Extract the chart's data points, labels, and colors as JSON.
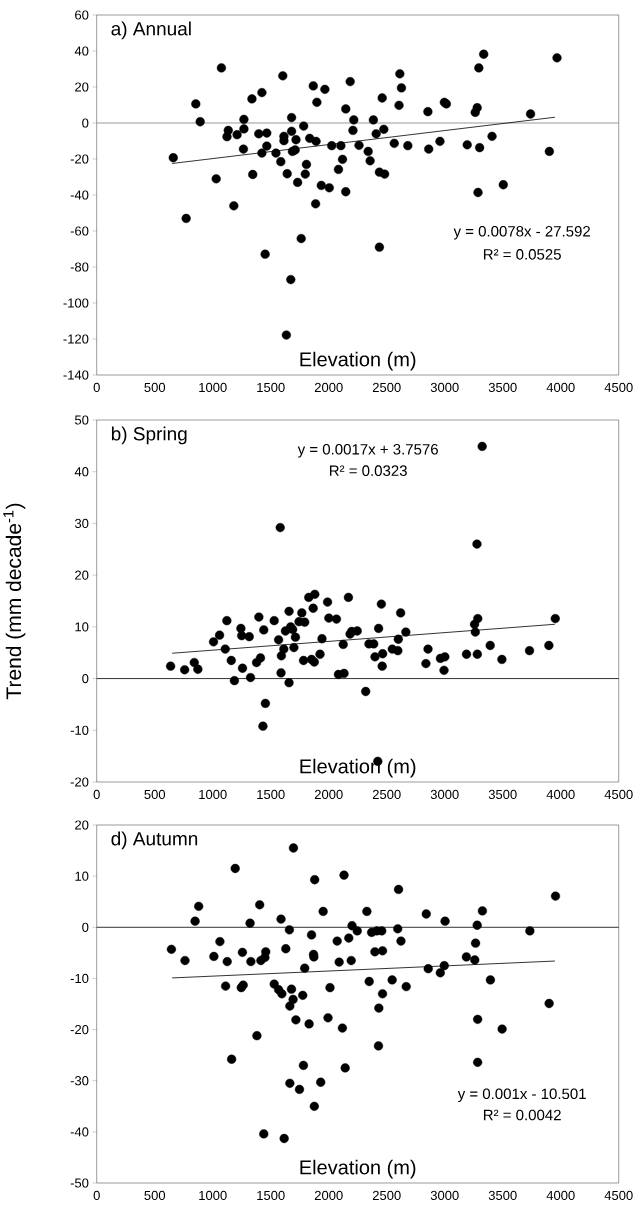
{
  "chart_data": [
    {
      "type": "scatter",
      "title": "a) Annual",
      "xlabel": "Elevation (m)",
      "marker": "circle",
      "xlim": [
        0,
        4500
      ],
      "ylim": [
        -140,
        60
      ],
      "xticks": [
        0,
        500,
        1000,
        1500,
        2000,
        2500,
        3000,
        3500,
        4000,
        4500
      ],
      "yticks": [
        -140,
        -120,
        -100,
        -80,
        -60,
        -40,
        -20,
        0,
        20,
        40,
        60
      ],
      "annotations": [
        "y = 0.0078x - 27.592",
        "R² = 0.0525"
      ],
      "ref_lines": [
        {
          "axis": "y",
          "value": 0,
          "color": "#808080"
        }
      ],
      "series": [
        {
          "color": "#000000",
          "x": [
            660,
            771,
            854,
            892,
            1030,
            1075,
            1134,
            1123,
            1182,
            1210,
            1265,
            1269,
            1269,
            1338,
            1345,
            1397,
            1424,
            1424,
            1452,
            1466,
            1466,
            1545,
            1587,
            1604,
            1614,
            1614,
            1635,
            1642,
            1673,
            1680,
            1680,
            1687,
            1711,
            1718,
            1732,
            1763,
            1784,
            1798,
            1808,
            1836,
            1867,
            1887,
            1891,
            1898,
            1936,
            1967,
            2005,
            2026,
            2084,
            2105,
            2119,
            2147,
            2147,
            2185,
            2209,
            2216,
            2261,
            2340,
            2357,
            2385,
            2409,
            2437,
            2437,
            2461,
            2475,
            2482,
            2565,
            2606,
            2613,
            2627,
            2682,
            2855,
            2862,
            2959,
            2997,
            3014,
            3194,
            3263,
            3280,
            3287,
            3294,
            3301,
            3336,
            3408,
            3505,
            3740,
            3902,
            3968
          ],
          "values": [
            -19.3,
            -53,
            10.6,
            0.7,
            -31,
            30.6,
            -4.1,
            -7.6,
            -46,
            -6.5,
            -14.5,
            2,
            -3.3,
            13.4,
            -28.6,
            -6,
            16.9,
            -16.7,
            -72.9,
            -5.6,
            -12.8,
            -16.7,
            -21.5,
            26.2,
            -7.4,
            -9.8,
            -117.8,
            -28.2,
            -87,
            3,
            -4.6,
            -15.8,
            -15,
            -9.3,
            -33,
            -64.2,
            -1.7,
            -28.4,
            -23,
            -8.5,
            20.6,
            -44.9,
            -10.2,
            11.5,
            -34.7,
            18.7,
            -36,
            -12.6,
            -25.8,
            -12.6,
            -20.2,
            -38.2,
            7.8,
            23,
            -4.1,
            1.7,
            -12.4,
            -15.8,
            -21,
            1.7,
            -6,
            -27.3,
            -69,
            13.9,
            -3.5,
            -28.4,
            -11.3,
            9.8,
            27.3,
            19.5,
            -12.6,
            6.3,
            -14.5,
            -10.2,
            11.5,
            10.6,
            -12.1,
            5.9,
            8.5,
            -38.6,
            30.6,
            -13.7,
            38.2,
            -7.4,
            -34.3,
            5,
            -15.8,
            36.2
          ]
        },
        {
          "type": "line",
          "marker": "none",
          "color": "#000000",
          "x": [
            650,
            3950
          ],
          "values": [
            -22.5,
            3.2
          ]
        }
      ]
    },
    {
      "type": "scatter",
      "title": "b) Spring",
      "xlabel": "Elevation (m)",
      "ylabel": "Trend (mm decade$^{-1}$)",
      "marker": "circle",
      "xlim": [
        0,
        4500
      ],
      "ylim": [
        -20,
        50
      ],
      "xticks": [
        0,
        500,
        1000,
        1500,
        2000,
        2500,
        3000,
        3500,
        4000,
        4500
      ],
      "yticks": [
        -20,
        -10,
        0,
        10,
        20,
        30,
        40,
        50
      ],
      "annotations": [
        "y = 0.0017x + 3.7576",
        "R² = 0.0323"
      ],
      "ref_lines": [
        {
          "axis": "y",
          "value": 0,
          "color": "#000000"
        }
      ],
      "series": [
        {
          "color": "#000000",
          "x": [
            637,
            758,
            841,
            872,
            1007,
            1059,
            1108,
            1122,
            1160,
            1187,
            1243,
            1250,
            1257,
            1315,
            1326,
            1378,
            1398,
            1412,
            1440,
            1433,
            1454,
            1530,
            1568,
            1582,
            1589,
            1592,
            1613,
            1627,
            1658,
            1658,
            1672,
            1689,
            1700,
            1713,
            1744,
            1768,
            1783,
            1793,
            1828,
            1852,
            1866,
            1876,
            1880,
            1942,
            1925,
            1990,
            2001,
            2067,
            2084,
            2132,
            2125,
            2170,
            2184,
            2198,
            2246,
            2319,
            2347,
            2388,
            2399,
            2423,
            2430,
            2454,
            2461,
            2465,
            2548,
            2596,
            2600,
            2620,
            2665,
            2838,
            2856,
            2963,
            2994,
            3001,
            3188,
            3257,
            3264,
            3278,
            3281,
            3285,
            3323,
            3392,
            3493,
            3731,
            3898,
            3953
          ],
          "values": [
            2.4,
            1.7,
            3.1,
            1.8,
            7.1,
            8.4,
            5.7,
            11.2,
            3.5,
            -0.4,
            9.7,
            8.3,
            2,
            8.1,
            0.2,
            3.1,
            11.9,
            4,
            9.4,
            -9.2,
            -4.8,
            11.2,
            7.5,
            29.2,
            1.1,
            4.4,
            5.7,
            9.2,
            13,
            -0.8,
            10,
            9.5,
            6,
            8,
            11,
            12.7,
            3.5,
            10.9,
            15.7,
            3.7,
            13.6,
            3.2,
            16.3,
            7.7,
            4.7,
            14.8,
            11.7,
            11.5,
            0.8,
            1,
            6.6,
            15.7,
            8.6,
            9.1,
            9.2,
            -2.5,
            6.7,
            6.7,
            4.2,
            -16,
            9.7,
            14.4,
            2.4,
            4.8,
            5.7,
            5.4,
            7.6,
            12.7,
            9,
            2.9,
            5.7,
            3.9,
            1.6,
            4.2,
            4.7,
            10.5,
            9,
            26,
            4.7,
            11.6,
            44.9,
            6.4,
            3.7,
            5.4,
            6.4,
            11.6
          ]
        },
        {
          "type": "line",
          "marker": "none",
          "color": "#000000",
          "x": [
            650,
            3950
          ],
          "values": [
            4.9,
            10.5
          ]
        }
      ]
    },
    {
      "type": "scatter",
      "title": "d) Autumn",
      "xlabel": "Elevation (m)",
      "marker": "circle",
      "xlim": [
        0,
        4500
      ],
      "ylim": [
        -50,
        20
      ],
      "xticks": [
        0,
        500,
        1000,
        1500,
        2000,
        2500,
        3000,
        3500,
        4000,
        4500
      ],
      "yticks": [
        -50,
        -40,
        -30,
        -20,
        -10,
        0,
        10,
        20
      ],
      "annotations": [
        "y = 0.001x - 10.501",
        "R² = 0.0042"
      ],
      "ref_lines": [
        {
          "axis": "y",
          "value": 0,
          "color": "#000000"
        }
      ],
      "series": [
        {
          "color": "#000000",
          "x": [
            644,
            761,
            848,
            879,
            1010,
            1062,
            1111,
            1125,
            1163,
            1194,
            1246,
            1256,
            1263,
            1322,
            1329,
            1381,
            1405,
            1415,
            1440,
            1450,
            1457,
            1530,
            1568,
            1589,
            1596,
            1616,
            1630,
            1661,
            1665,
            1665,
            1679,
            1693,
            1696,
            1717,
            1748,
            1776,
            1782,
            1793,
            1831,
            1852,
            1869,
            1872,
            1879,
            1876,
            1931,
            1952,
            1994,
            2011,
            2073,
            2090,
            2118,
            2132,
            2142,
            2173,
            2194,
            2201,
            2246,
            2329,
            2349,
            2370,
            2398,
            2415,
            2429,
            2432,
            2457,
            2464,
            2464,
            2547,
            2595,
            2602,
            2623,
            2668,
            2841,
            2858,
            2962,
            2996,
            3003,
            3187,
            3259,
            3266,
            3280,
            3284,
            3284,
            3325,
            3394,
            3495,
            3734,
            3900,
            3955
          ],
          "values": [
            -4.3,
            -6.5,
            1.2,
            4.1,
            -5.7,
            -2.8,
            -11.5,
            -6.7,
            -25.8,
            11.5,
            -11.8,
            -4.9,
            -11.3,
            0.8,
            -6.7,
            -21.2,
            4.4,
            -6.5,
            -40.4,
            -5.9,
            -4.8,
            -11.1,
            -12.2,
            1.6,
            -13,
            -41.3,
            -4.2,
            -0.5,
            -15.4,
            -30.5,
            -12.1,
            -14.1,
            15.5,
            -18.1,
            -31.7,
            -13.3,
            -27,
            -8,
            -18.9,
            -1.5,
            -5.3,
            -5.8,
            9.3,
            -35,
            -30.3,
            3.1,
            -17.7,
            -11.8,
            -2.7,
            -6.8,
            -19.7,
            10.2,
            -27.5,
            -2.1,
            -6.5,
            0.3,
            -0.7,
            3.1,
            -10.6,
            -1,
            -4.8,
            -0.7,
            -23.2,
            -15.8,
            -0.7,
            -4.6,
            -13,
            -10.3,
            -0.3,
            7.4,
            -2.7,
            -11.6,
            2.6,
            -8.1,
            -8.9,
            -7.5,
            1.2,
            -5.8,
            -6.4,
            -3.1,
            0.4,
            -18,
            -26.4,
            3.2,
            -10.3,
            -19.9,
            -0.7,
            -14.9,
            6.1
          ]
        },
        {
          "type": "line",
          "marker": "none",
          "color": "#000000",
          "x": [
            650,
            3950
          ],
          "values": [
            -9.9,
            -6.6
          ]
        }
      ]
    }
  ]
}
